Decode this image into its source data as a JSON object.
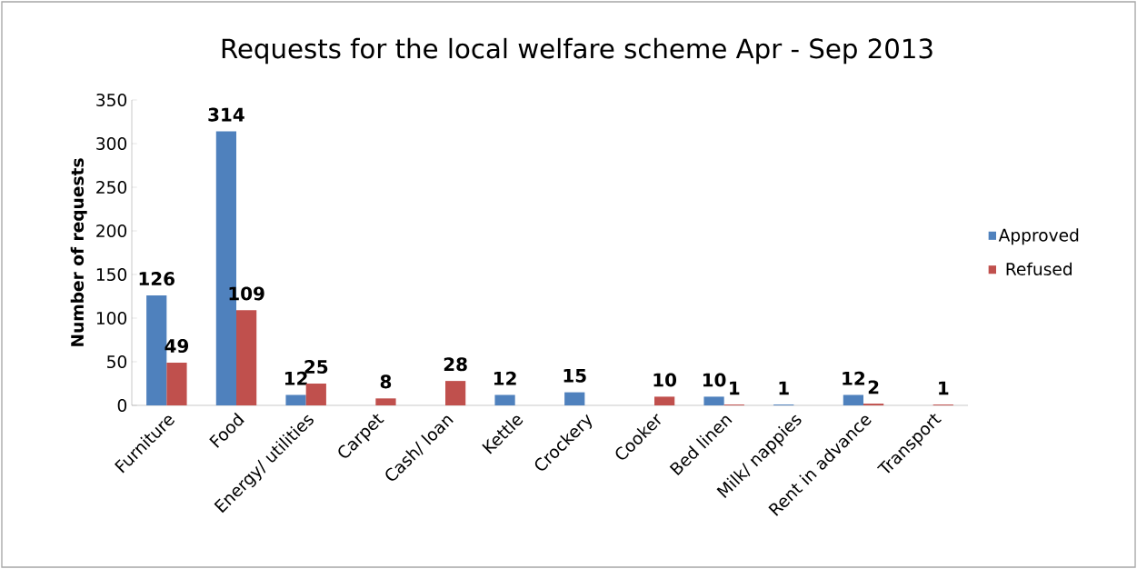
{
  "chart_data": {
    "type": "bar",
    "title": "Requests for the local welfare scheme Apr - Sep 2013",
    "ylabel": "Number of requests",
    "categories": [
      "Furniture",
      "Food",
      "Energy/ utilities",
      "Carpet",
      "Cash/ loan",
      "Kettle",
      "Crockery",
      "Cooker",
      "Bed linen",
      "Milk/ nappies",
      "Rent in advance",
      "Transport"
    ],
    "series": [
      {
        "name": "Approved",
        "color": "#4f81bd",
        "values": [
          126,
          314,
          12,
          null,
          null,
          12,
          15,
          null,
          10,
          1,
          12,
          null
        ]
      },
      {
        "name": "Refused",
        "color": "#c0504d",
        "values": [
          49,
          109,
          25,
          8,
          28,
          null,
          null,
          10,
          1,
          null,
          2,
          1
        ]
      }
    ],
    "ylim": [
      0,
      350
    ],
    "yticks": [
      0,
      50,
      100,
      150,
      200,
      250,
      300,
      350
    ],
    "data_labels": true,
    "legend": "right",
    "grid": false
  }
}
